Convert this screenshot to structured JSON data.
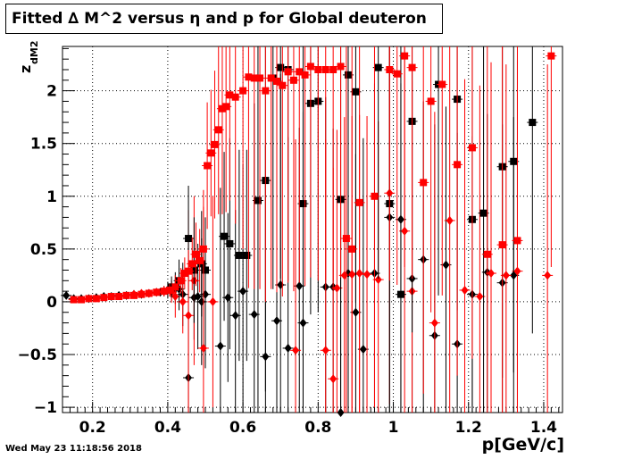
{
  "title": "Fitted ∆ M^2 versus η and p for Global deuteron",
  "xlabel": "p[GeV/c]",
  "ylabel_main": "z",
  "ylabel_sub": "dM2",
  "timestamp": "Wed May 23 11:18:56 2018",
  "colors": {
    "series1": "#000000",
    "series2": "#ff0000",
    "grid": "#000000"
  },
  "chart_data": {
    "type": "scatter",
    "title": "Fitted ∆ M^2 versus η and p for Global deuteron",
    "xlabel": "p[GeV/c]",
    "ylabel": "z_dM2",
    "xlim": [
      0.12,
      1.45
    ],
    "ylim": [
      -1.05,
      2.42
    ],
    "x_ticks": [
      0.2,
      0.4,
      0.6,
      0.8,
      1.0,
      1.2,
      1.4
    ],
    "x_tick_labels": [
      "0.2",
      "0.4",
      "0.6",
      "0.8",
      "1",
      "1.2",
      "1.4"
    ],
    "y_ticks": [
      -1,
      -0.5,
      0,
      0.5,
      1,
      1.5,
      2
    ],
    "y_tick_labels": [
      "−1",
      "−0.5",
      "0",
      "0.5",
      "1",
      "1.5",
      "2"
    ],
    "grid": true,
    "series": [
      {
        "marker": "diamond",
        "color": "#000000",
        "points": [
          [
            0.13,
            0.06,
            0.01
          ],
          [
            0.15,
            0.03,
            0.01
          ],
          [
            0.17,
            0.03,
            0.01
          ],
          [
            0.19,
            0.03,
            0.01
          ],
          [
            0.21,
            0.04,
            0.01
          ],
          [
            0.23,
            0.05,
            0.01
          ],
          [
            0.25,
            0.05,
            0.01
          ],
          [
            0.27,
            0.06,
            0.01
          ],
          [
            0.29,
            0.06,
            0.01
          ],
          [
            0.31,
            0.07,
            0.02
          ],
          [
            0.33,
            0.07,
            0.02
          ],
          [
            0.35,
            0.08,
            0.02
          ],
          [
            0.37,
            0.09,
            0.03
          ],
          [
            0.38,
            0.09,
            0.03
          ],
          [
            0.39,
            0.1,
            0.05
          ],
          [
            0.4,
            0.11,
            0.08
          ],
          [
            0.41,
            0.1,
            0.1
          ],
          [
            0.42,
            0.13,
            0.15
          ],
          [
            0.43,
            0.12,
            0.2
          ],
          [
            0.44,
            0.07,
            0.3
          ],
          [
            0.455,
            -0.72,
            1.2
          ],
          [
            0.47,
            0.04,
            0.4
          ],
          [
            0.48,
            0.05,
            0.5
          ],
          [
            0.49,
            0.0,
            0.6
          ],
          [
            0.5,
            0.07,
            0.7
          ],
          [
            0.54,
            -0.42,
            1.5
          ],
          [
            0.56,
            0.04,
            0.8
          ],
          [
            0.58,
            -0.13,
            1.0
          ],
          [
            0.6,
            0.1,
            1.2
          ],
          [
            0.63,
            -0.12,
            2.0
          ],
          [
            0.66,
            -0.52,
            2.0
          ],
          [
            0.69,
            -0.18,
            2.0
          ],
          [
            0.7,
            0.16,
            2.0
          ],
          [
            0.72,
            -0.44,
            2.0
          ],
          [
            0.75,
            0.15,
            1.5
          ],
          [
            0.76,
            -0.2,
            2.0
          ],
          [
            0.82,
            0.14,
            1.8
          ],
          [
            0.84,
            0.14,
            1.5
          ],
          [
            0.86,
            -1.05,
            2.0
          ],
          [
            0.88,
            0.27,
            1.5
          ],
          [
            0.9,
            -0.1,
            1.5
          ],
          [
            0.92,
            -0.45,
            2.0
          ],
          [
            0.95,
            0.27,
            1.8
          ],
          [
            0.99,
            0.8,
            2.0
          ],
          [
            1.02,
            0.78,
            2.0
          ],
          [
            1.05,
            0.22,
            2.0
          ],
          [
            1.08,
            0.4,
            1.5
          ],
          [
            1.11,
            -0.32,
            2.0
          ],
          [
            1.14,
            0.35,
            1.5
          ],
          [
            1.17,
            -0.4,
            2.0
          ],
          [
            1.21,
            0.07,
            1.5
          ],
          [
            1.25,
            0.28,
            1.5
          ],
          [
            1.29,
            0.18,
            1.5
          ],
          [
            1.32,
            0.25,
            1.5
          ]
        ]
      },
      {
        "marker": "diamond",
        "color": "#ff0000",
        "points": [
          [
            0.31,
            0.07,
            0.02
          ],
          [
            0.33,
            0.08,
            0.02
          ],
          [
            0.35,
            0.08,
            0.02
          ],
          [
            0.37,
            0.09,
            0.03
          ],
          [
            0.39,
            0.1,
            0.05
          ],
          [
            0.41,
            0.09,
            0.1
          ],
          [
            0.42,
            0.05,
            0.2
          ],
          [
            0.44,
            0.0,
            0.3
          ],
          [
            0.455,
            -0.13,
            1.0
          ],
          [
            0.47,
            0.2,
            0.8
          ],
          [
            0.495,
            -0.44,
            1.5
          ],
          [
            0.52,
            0.0,
            1.0
          ],
          [
            0.74,
            -0.46,
            2.0
          ],
          [
            0.82,
            -0.46,
            2.0
          ],
          [
            0.84,
            -0.73,
            2.0
          ],
          [
            0.85,
            0.13,
            1.5
          ],
          [
            0.87,
            0.25,
            1.5
          ],
          [
            0.89,
            0.26,
            1.5
          ],
          [
            0.91,
            0.27,
            1.5
          ],
          [
            0.93,
            0.26,
            1.5
          ],
          [
            0.96,
            0.21,
            1.5
          ],
          [
            0.99,
            1.03,
            2.0
          ],
          [
            1.03,
            0.67,
            2.0
          ],
          [
            1.05,
            0.1,
            2.0
          ],
          [
            1.11,
            -0.2,
            2.0
          ],
          [
            1.15,
            0.77,
            2.0
          ],
          [
            1.19,
            0.11,
            2.0
          ],
          [
            1.23,
            0.05,
            2.0
          ],
          [
            1.26,
            0.27,
            2.0
          ],
          [
            1.3,
            0.25,
            2.0
          ],
          [
            1.33,
            0.29,
            2.0
          ],
          [
            1.41,
            0.25,
            2.0
          ]
        ]
      },
      {
        "marker": "square",
        "color": "#000000",
        "points": [
          [
            0.41,
            0.14,
            0.1
          ],
          [
            0.43,
            0.2,
            0.2
          ],
          [
            0.455,
            0.6,
            0.5
          ],
          [
            0.47,
            0.3,
            0.5
          ],
          [
            0.49,
            0.36,
            0.5
          ],
          [
            0.5,
            0.3,
            0.5
          ],
          [
            0.55,
            0.62,
            0.8
          ],
          [
            0.565,
            0.55,
            1.0
          ],
          [
            0.59,
            0.44,
            1.0
          ],
          [
            0.61,
            0.44,
            1.0
          ],
          [
            0.64,
            0.96,
            2.0
          ],
          [
            0.66,
            1.15,
            2.0
          ],
          [
            0.68,
            2.12,
            2.0
          ],
          [
            0.7,
            2.22,
            2.0
          ],
          [
            0.72,
            2.2,
            2.0
          ],
          [
            0.76,
            0.93,
            2.0
          ],
          [
            0.78,
            1.88,
            2.0
          ],
          [
            0.8,
            1.9,
            2.0
          ],
          [
            0.86,
            0.97,
            2.0
          ],
          [
            0.88,
            2.15,
            2.0
          ],
          [
            0.9,
            1.99,
            2.0
          ],
          [
            0.96,
            2.22,
            2.0
          ],
          [
            0.99,
            0.93,
            2.0
          ],
          [
            1.02,
            0.07,
            2.0
          ],
          [
            1.05,
            1.71,
            2.0
          ],
          [
            1.12,
            2.06,
            2.0
          ],
          [
            1.17,
            1.92,
            2.0
          ],
          [
            1.21,
            0.78,
            2.0
          ],
          [
            1.24,
            0.84,
            2.0
          ],
          [
            1.29,
            1.28,
            2.0
          ],
          [
            1.32,
            1.33,
            2.0
          ],
          [
            1.37,
            1.7,
            2.0
          ]
        ]
      },
      {
        "marker": "square",
        "color": "#ff0000",
        "points": [
          [
            0.15,
            0.02,
            0.01
          ],
          [
            0.17,
            0.02,
            0.01
          ],
          [
            0.19,
            0.03,
            0.01
          ],
          [
            0.21,
            0.03,
            0.01
          ],
          [
            0.23,
            0.04,
            0.01
          ],
          [
            0.25,
            0.05,
            0.01
          ],
          [
            0.27,
            0.05,
            0.01
          ],
          [
            0.29,
            0.06,
            0.01
          ],
          [
            0.31,
            0.06,
            0.02
          ],
          [
            0.33,
            0.07,
            0.02
          ],
          [
            0.35,
            0.08,
            0.02
          ],
          [
            0.37,
            0.09,
            0.03
          ],
          [
            0.39,
            0.1,
            0.04
          ],
          [
            0.405,
            0.11,
            0.06
          ],
          [
            0.42,
            0.14,
            0.08
          ],
          [
            0.435,
            0.2,
            0.12
          ],
          [
            0.445,
            0.27,
            0.15
          ],
          [
            0.455,
            0.29,
            0.2
          ],
          [
            0.465,
            0.36,
            0.25
          ],
          [
            0.475,
            0.45,
            0.3
          ],
          [
            0.485,
            0.39,
            0.3
          ],
          [
            0.495,
            0.5,
            0.4
          ],
          [
            0.505,
            1.29,
            0.6
          ],
          [
            0.515,
            1.41,
            0.6
          ],
          [
            0.525,
            1.49,
            0.7
          ],
          [
            0.535,
            1.63,
            0.8
          ],
          [
            0.545,
            1.83,
            1.0
          ],
          [
            0.555,
            1.85,
            1.0
          ],
          [
            0.565,
            1.96,
            1.0
          ],
          [
            0.58,
            1.94,
            1.2
          ],
          [
            0.6,
            2.0,
            1.5
          ],
          [
            0.615,
            2.13,
            2.0
          ],
          [
            0.63,
            2.12,
            2.0
          ],
          [
            0.645,
            2.12,
            2.0
          ],
          [
            0.66,
            2.0,
            2.0
          ],
          [
            0.675,
            2.12,
            2.0
          ],
          [
            0.69,
            2.09,
            2.0
          ],
          [
            0.705,
            2.05,
            2.0
          ],
          [
            0.72,
            2.18,
            2.0
          ],
          [
            0.735,
            2.1,
            2.0
          ],
          [
            0.75,
            2.18,
            2.0
          ],
          [
            0.765,
            2.15,
            2.0
          ],
          [
            0.78,
            2.23,
            2.0
          ],
          [
            0.8,
            2.2,
            2.0
          ],
          [
            0.82,
            2.2,
            2.0
          ],
          [
            0.84,
            2.2,
            2.0
          ],
          [
            0.86,
            2.23,
            2.0
          ],
          [
            0.875,
            0.6,
            2.0
          ],
          [
            0.89,
            0.5,
            2.0
          ],
          [
            0.91,
            0.94,
            2.0
          ],
          [
            0.95,
            1.0,
            2.0
          ],
          [
            0.99,
            2.2,
            2.0
          ],
          [
            1.01,
            2.16,
            2.0
          ],
          [
            1.03,
            2.33,
            2.0
          ],
          [
            1.05,
            2.22,
            2.0
          ],
          [
            1.08,
            1.13,
            2.0
          ],
          [
            1.1,
            1.9,
            2.0
          ],
          [
            1.13,
            2.06,
            2.0
          ],
          [
            1.17,
            1.3,
            2.0
          ],
          [
            1.21,
            1.46,
            2.0
          ],
          [
            1.25,
            0.45,
            2.0
          ],
          [
            1.29,
            0.54,
            2.0
          ],
          [
            1.33,
            0.58,
            2.0
          ],
          [
            1.42,
            2.33,
            2.0
          ]
        ]
      }
    ]
  }
}
